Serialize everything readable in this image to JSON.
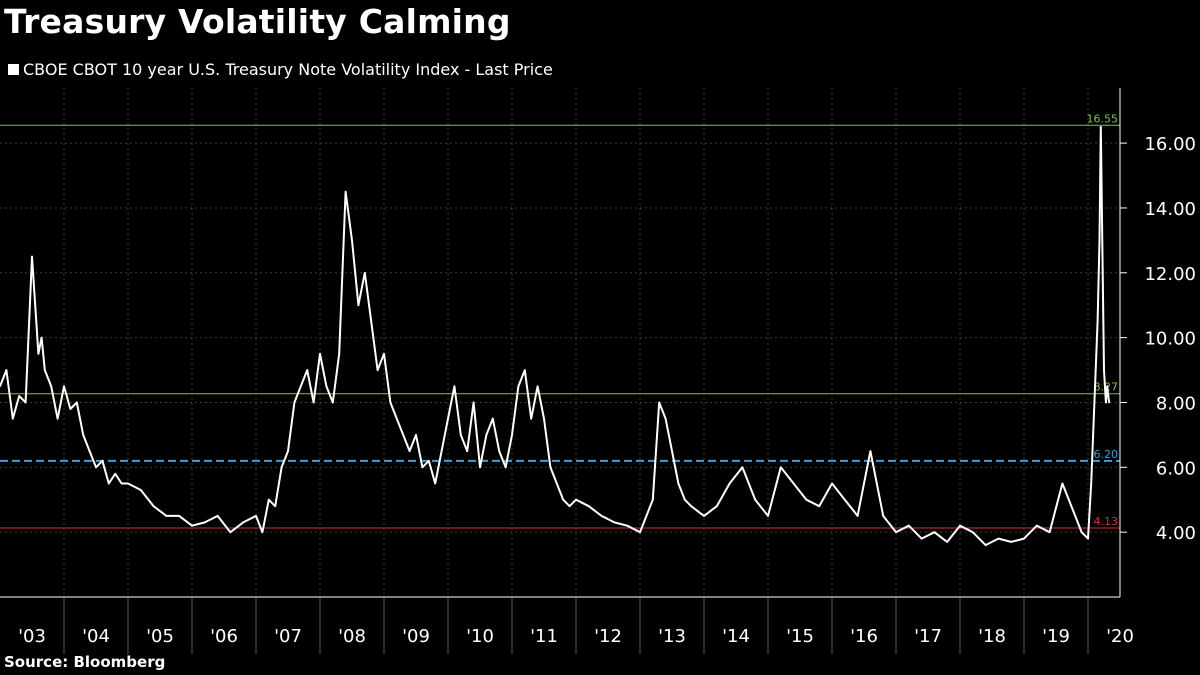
{
  "title": "Treasury Volatility Calming",
  "legend": {
    "label": "CBOE CBOT 10 year U.S. Treasury Note Volatility Index - Last Price"
  },
  "source": "Source:  Bloomberg",
  "chart_data": {
    "type": "line",
    "title": "Treasury Volatility Calming",
    "xlabel": "",
    "ylabel": "",
    "ylim": [
      2.0,
      17.7
    ],
    "xlim": [
      2003.0,
      2020.5
    ],
    "y_ticks": [
      4.0,
      6.0,
      8.0,
      10.0,
      12.0,
      14.0,
      16.0
    ],
    "y_tick_labels": [
      "4.00",
      "6.00",
      "8.00",
      "10.00",
      "12.00",
      "14.00",
      "16.00"
    ],
    "x_tick_labels": [
      "'03",
      "'04",
      "'05",
      "'06",
      "'07",
      "'08",
      "'09",
      "'10",
      "'11",
      "'12",
      "'13",
      "'14",
      "'15",
      "'16",
      "'17",
      "'18",
      "'19",
      "'20"
    ],
    "grid": true,
    "legend_position": "top-left",
    "colors": {
      "series": "#ffffff",
      "max_line": "#7fc241",
      "mean_line": "#7fc241",
      "sd_line": "#3aa0d8",
      "min_line": "#d2323a"
    },
    "reference_lines": [
      {
        "value": 16.55,
        "label": "16.55",
        "style": "solid",
        "color": "#7fc241"
      },
      {
        "value": 8.27,
        "label": "8.27",
        "style": "solid",
        "color": "#7fc241"
      },
      {
        "value": 6.2,
        "label": "6.20",
        "style": "dashed",
        "color": "#3aa0d8"
      },
      {
        "value": 4.13,
        "label": "4.13",
        "style": "solid",
        "color": "#d2323a"
      }
    ],
    "series": [
      {
        "name": "CBOE CBOT 10 year U.S. Treasury Note Volatility Index - Last Price",
        "x": [
          2003.0,
          2003.1,
          2003.2,
          2003.3,
          2003.4,
          2003.5,
          2003.55,
          2003.6,
          2003.65,
          2003.7,
          2003.8,
          2003.9,
          2004.0,
          2004.1,
          2004.2,
          2004.3,
          2004.4,
          2004.5,
          2004.6,
          2004.7,
          2004.8,
          2004.9,
          2005.0,
          2005.2,
          2005.4,
          2005.6,
          2005.8,
          2006.0,
          2006.2,
          2006.4,
          2006.6,
          2006.8,
          2007.0,
          2007.1,
          2007.2,
          2007.3,
          2007.4,
          2007.5,
          2007.6,
          2007.7,
          2007.8,
          2007.9,
          2008.0,
          2008.1,
          2008.2,
          2008.3,
          2008.4,
          2008.5,
          2008.6,
          2008.7,
          2008.8,
          2008.9,
          2009.0,
          2009.1,
          2009.2,
          2009.3,
          2009.4,
          2009.5,
          2009.6,
          2009.7,
          2009.8,
          2009.9,
          2010.0,
          2010.1,
          2010.2,
          2010.3,
          2010.4,
          2010.5,
          2010.6,
          2010.7,
          2010.8,
          2010.9,
          2011.0,
          2011.1,
          2011.2,
          2011.3,
          2011.4,
          2011.5,
          2011.6,
          2011.7,
          2011.8,
          2011.9,
          2012.0,
          2012.2,
          2012.4,
          2012.6,
          2012.8,
          2013.0,
          2013.2,
          2013.3,
          2013.4,
          2013.5,
          2013.6,
          2013.7,
          2013.8,
          2014.0,
          2014.2,
          2014.4,
          2014.6,
          2014.8,
          2015.0,
          2015.2,
          2015.4,
          2015.6,
          2015.8,
          2016.0,
          2016.2,
          2016.4,
          2016.6,
          2016.8,
          2017.0,
          2017.2,
          2017.4,
          2017.6,
          2017.8,
          2018.0,
          2018.2,
          2018.4,
          2018.6,
          2018.8,
          2019.0,
          2019.2,
          2019.4,
          2019.6,
          2019.8,
          2019.9,
          2020.0,
          2020.05,
          2020.1,
          2020.15,
          2020.18,
          2020.2,
          2020.23,
          2020.25,
          2020.28,
          2020.3,
          2020.33
        ],
        "values": [
          8.5,
          9.0,
          7.5,
          8.2,
          8.0,
          12.5,
          11.0,
          9.5,
          10.0,
          9.0,
          8.5,
          7.5,
          8.5,
          7.8,
          8.0,
          7.0,
          6.5,
          6.0,
          6.2,
          5.5,
          5.8,
          5.5,
          5.5,
          5.3,
          4.8,
          4.5,
          4.5,
          4.2,
          4.3,
          4.5,
          4.0,
          4.3,
          4.5,
          4.0,
          5.0,
          4.8,
          6.0,
          6.5,
          8.0,
          8.5,
          9.0,
          8.0,
          9.5,
          8.5,
          8.0,
          9.5,
          14.5,
          13.0,
          11.0,
          12.0,
          10.5,
          9.0,
          9.5,
          8.0,
          7.5,
          7.0,
          6.5,
          7.0,
          6.0,
          6.2,
          5.5,
          6.5,
          7.5,
          8.5,
          7.0,
          6.5,
          8.0,
          6.0,
          7.0,
          7.5,
          6.5,
          6.0,
          7.0,
          8.5,
          9.0,
          7.5,
          8.5,
          7.5,
          6.0,
          5.5,
          5.0,
          4.8,
          5.0,
          4.8,
          4.5,
          4.3,
          4.2,
          4.0,
          5.0,
          8.0,
          7.5,
          6.5,
          5.5,
          5.0,
          4.8,
          4.5,
          4.8,
          5.5,
          6.0,
          5.0,
          4.5,
          6.0,
          5.5,
          5.0,
          4.8,
          5.5,
          5.0,
          4.5,
          6.5,
          4.5,
          4.0,
          4.2,
          3.8,
          4.0,
          3.7,
          4.2,
          4.0,
          3.6,
          3.8,
          3.7,
          3.8,
          4.2,
          4.0,
          5.5,
          4.5,
          4.0,
          3.8,
          5.5,
          8.0,
          10.5,
          13.0,
          16.5,
          12.0,
          9.0,
          8.0,
          8.5,
          8.0
        ]
      }
    ]
  }
}
